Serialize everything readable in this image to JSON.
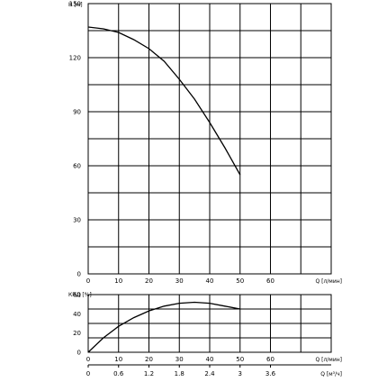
{
  "chart_data": [
    {
      "type": "line",
      "ylabel": "H [м]",
      "xlabel": "Q [л/мин]",
      "xlim": [
        0,
        80
      ],
      "ylim": [
        0,
        150
      ],
      "x_ticks": [
        "0",
        "10",
        "20",
        "30",
        "40",
        "50",
        "60"
      ],
      "y_ticks": [
        "0",
        "30",
        "60",
        "90",
        "120",
        "150"
      ],
      "grid": true,
      "series": [
        {
          "x": [
            0,
            5,
            10,
            15,
            20,
            25,
            30,
            35,
            40,
            45,
            50
          ],
          "values": [
            137,
            136,
            134,
            130,
            125,
            118,
            108,
            97,
            84,
            70,
            55
          ]
        }
      ]
    },
    {
      "type": "line",
      "ylabel": "КПД [%]",
      "xlabel": "Q [л/мин]",
      "xlim": [
        0,
        80
      ],
      "ylim": [
        0,
        60
      ],
      "x_ticks": [
        "0",
        "10",
        "20",
        "30",
        "40",
        "50",
        "60"
      ],
      "y_ticks": [
        "0",
        "20",
        "40",
        "60"
      ],
      "grid": true,
      "series": [
        {
          "x": [
            0,
            5,
            10,
            15,
            20,
            25,
            30,
            35,
            40,
            45,
            50
          ],
          "values": [
            0,
            15,
            27,
            36,
            43,
            48,
            51,
            52,
            51,
            48,
            45
          ]
        }
      ],
      "secondary_x": {
        "label": "Q [м³/ч]",
        "ticks": [
          "0",
          "0.6",
          "1.2",
          "1.8",
          "2.4",
          "3",
          "3.6"
        ]
      }
    }
  ]
}
